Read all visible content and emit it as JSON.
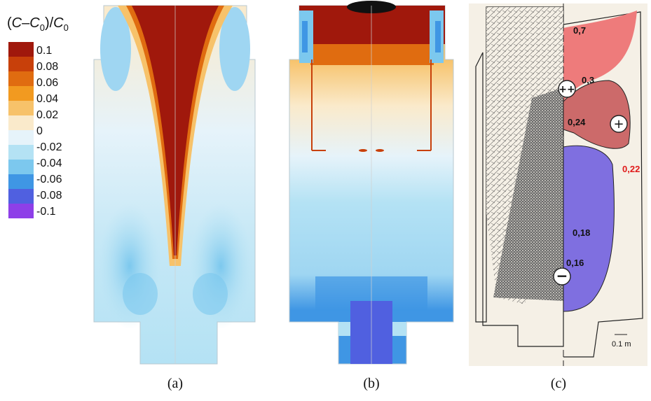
{
  "legend": {
    "title_open": "(",
    "title_C": "C",
    "title_minus": "–",
    "title_C0": "C",
    "title_sub0": "0",
    "title_close": ")/",
    "title_C0b": "C",
    "title_sub0b": "0",
    "ticks": [
      "0.1",
      "0.08",
      "0.06",
      "0.04",
      "0.02",
      "0",
      "-0.02",
      "-0.04",
      "-0.06",
      "-0.08",
      "-0.1"
    ],
    "colors": [
      "#a0180c",
      "#c8400a",
      "#e06c10",
      "#f29a20",
      "#f7c26a",
      "#faeacb",
      "#e6f3fa",
      "#b4e2f4",
      "#7cc8ee",
      "#3f96e4",
      "#5060e0",
      "#8e3fe8"
    ]
  },
  "panels": {
    "a_label": "(a)",
    "b_label": "(b)",
    "c_label": "(c)"
  },
  "panel_c": {
    "values": [
      "0,7",
      "0,3",
      "0,24",
      "0,22",
      "0,18",
      "0,16"
    ],
    "value_colors": {
      "highlight": "#e01b1b"
    },
    "signs": [
      "++",
      "+",
      "−"
    ],
    "scale": "0.1 m",
    "zone_colors": {
      "high": "#ee7b7b",
      "mid": "#cc6a6a",
      "low": "#7f6fe0"
    }
  }
}
